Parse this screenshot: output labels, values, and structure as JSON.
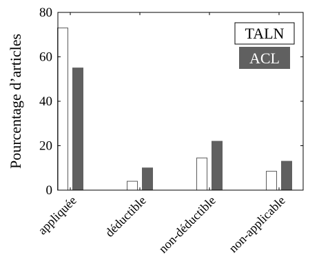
{
  "chart_data": {
    "type": "bar",
    "title": "",
    "xlabel": "",
    "ylabel": "Pourcentage d’articles",
    "ylim": [
      0,
      80
    ],
    "yticks": [
      0,
      20,
      40,
      60,
      80
    ],
    "grid": false,
    "legend_position": "top-right",
    "categories": [
      "appliquée",
      "déductible",
      "non-déductible",
      "non-applicable"
    ],
    "series": [
      {
        "name": "TALN",
        "values": [
          73,
          4,
          14.5,
          8.5
        ],
        "fill": "#ffffff",
        "stroke": "#5a5a5a"
      },
      {
        "name": "ACL",
        "values": [
          55,
          10,
          22,
          13
        ],
        "fill": "#606060",
        "stroke": "#606060"
      }
    ]
  },
  "colors": {
    "axis": "#000000",
    "legend_acl_text": "#ffffff"
  }
}
